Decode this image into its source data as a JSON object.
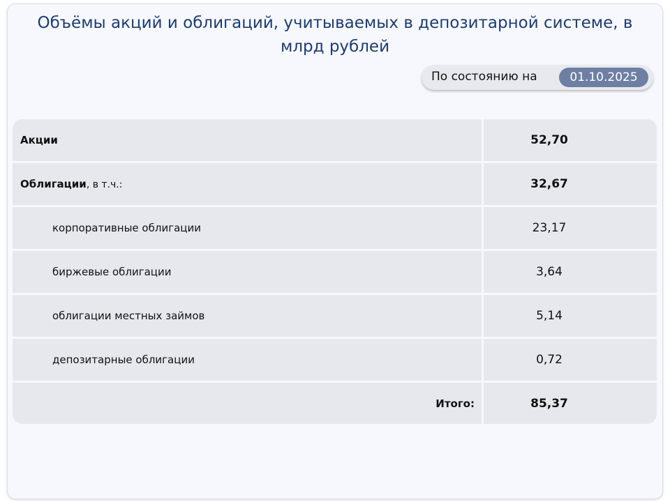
{
  "title": "Объёмы акций и облигаций, учитываемых в депозитарной системе, в млрд рублей",
  "as_of": {
    "label": "По состоянию на",
    "date": "01.10.2025"
  },
  "rows": [
    {
      "label": "Акции",
      "suffix": "",
      "value": "52,70"
    },
    {
      "label": "Облигации",
      "suffix": ", в т.ч.:",
      "value": "32,67"
    },
    {
      "label": "корпоративные облигации",
      "value": "23,17"
    },
    {
      "label": "биржевые облигации",
      "value": "3,64"
    },
    {
      "label": "облигации местных займов",
      "value": "5,14"
    },
    {
      "label": "депозитарные облигации",
      "value": "0,72"
    },
    {
      "label": "Итого:",
      "value": "85,37"
    }
  ]
}
